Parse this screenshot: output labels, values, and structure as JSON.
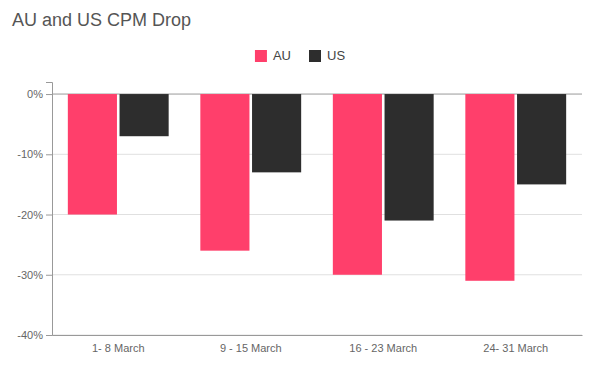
{
  "chart_data": {
    "type": "bar",
    "title": "AU and US CPM Drop",
    "categories": [
      "1- 8 March",
      "9 - 15 March",
      "16 - 23 March",
      "24- 31 March"
    ],
    "series": [
      {
        "name": "AU",
        "color": "#FF3F6B",
        "values": [
          -20,
          -26,
          -30,
          -31
        ]
      },
      {
        "name": "US",
        "color": "#2d2d2d",
        "values": [
          -7,
          -13,
          -21,
          -15
        ]
      }
    ],
    "ylim": [
      -40,
      2
    ],
    "yticks": [
      {
        "value": 0,
        "label": "0%"
      },
      {
        "value": -10,
        "label": "-10%"
      },
      {
        "value": -20,
        "label": "-20%"
      },
      {
        "value": -30,
        "label": "-30%"
      },
      {
        "value": -40,
        "label": "-40%"
      }
    ],
    "grid": true,
    "legend": "top"
  }
}
